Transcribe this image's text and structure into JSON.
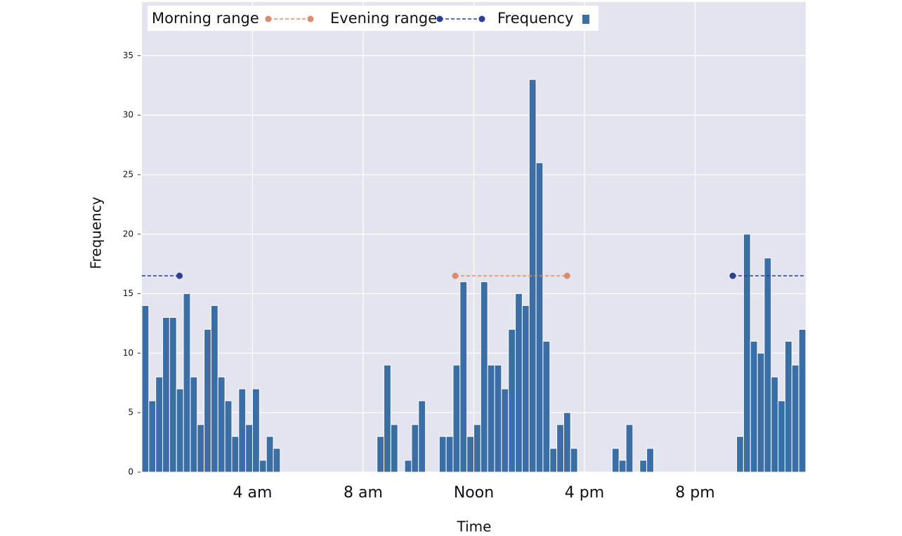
{
  "chart_data": {
    "type": "histogram",
    "xlabel": "Time",
    "ylabel": "Frequency",
    "bins": [
      0,
      0.25,
      0.5,
      0.75,
      1,
      1.25,
      1.5,
      1.75,
      2,
      2.25,
      2.5,
      2.75,
      3,
      3.25,
      3.5,
      3.75,
      4,
      4.25,
      4.5,
      4.75,
      5,
      5.25,
      5.5,
      5.75,
      6,
      6.25,
      6.5,
      6.75,
      7,
      7.25,
      7.5,
      7.75,
      8,
      8.25,
      8.5,
      8.75,
      9,
      9.25,
      9.5,
      9.75,
      10,
      10.25,
      10.5,
      10.75,
      11,
      11.25,
      11.5,
      11.75,
      12,
      12.25,
      12.5,
      12.75,
      13,
      13.25,
      13.5,
      13.75,
      14,
      14.25,
      14.5,
      14.75,
      15,
      15.25,
      15.5,
      15.75,
      16,
      16.25,
      16.5,
      16.75,
      17,
      17.25,
      17.5,
      17.75,
      18,
      18.25,
      18.5,
      18.75,
      19,
      19.25,
      19.5,
      19.75,
      20,
      20.25,
      20.5,
      20.75,
      21,
      21.25,
      21.5,
      21.75,
      22,
      22.25,
      22.5,
      22.75,
      23,
      23.25,
      23.5,
      23.75,
      24
    ],
    "values": [
      14,
      6,
      8,
      13,
      13,
      7,
      15,
      8,
      4,
      12,
      14,
      8,
      6,
      3,
      7,
      4,
      7,
      1,
      3,
      2,
      0,
      0,
      0,
      0,
      0,
      0,
      0,
      0,
      0,
      0,
      0,
      0,
      0,
      0,
      3,
      9,
      4,
      0,
      1,
      4,
      6,
      0,
      0,
      3,
      3,
      9,
      16,
      3,
      4,
      16,
      9,
      9,
      7,
      12,
      15,
      14,
      33,
      26,
      11,
      2,
      4,
      5,
      2,
      0,
      0,
      0,
      0,
      0,
      2,
      1,
      4,
      0,
      1,
      2,
      0,
      0,
      0,
      0,
      0,
      0,
      0,
      0,
      0,
      0,
      0,
      0,
      3,
      20,
      11,
      10,
      18,
      8,
      6,
      11,
      9,
      12
    ],
    "series": [
      {
        "name": "Frequency",
        "color": "#3b6ea5"
      },
      {
        "name": "Morning range",
        "color": "#d98c6e",
        "x": [
          11.33,
          15.37
        ],
        "values": [
          16.5,
          16.5
        ]
      },
      {
        "name": "Evening range",
        "color": "#2b3f95",
        "x": [
          21.36,
          1.36
        ],
        "values": [
          16.5,
          16.5
        ]
      }
    ],
    "xlim": [
      0,
      24
    ],
    "ylim": [
      0,
      39.5
    ],
    "xticks": [
      {
        "value": 4,
        "label": "4 am"
      },
      {
        "value": 8,
        "label": "8 am"
      },
      {
        "value": 12,
        "label": "Noon"
      },
      {
        "value": 16,
        "label": "4 pm"
      },
      {
        "value": 20,
        "label": "8 pm"
      }
    ],
    "yticks": [
      0,
      5,
      10,
      15,
      20,
      25,
      30,
      35
    ],
    "grid": true,
    "legend": "top-left"
  }
}
